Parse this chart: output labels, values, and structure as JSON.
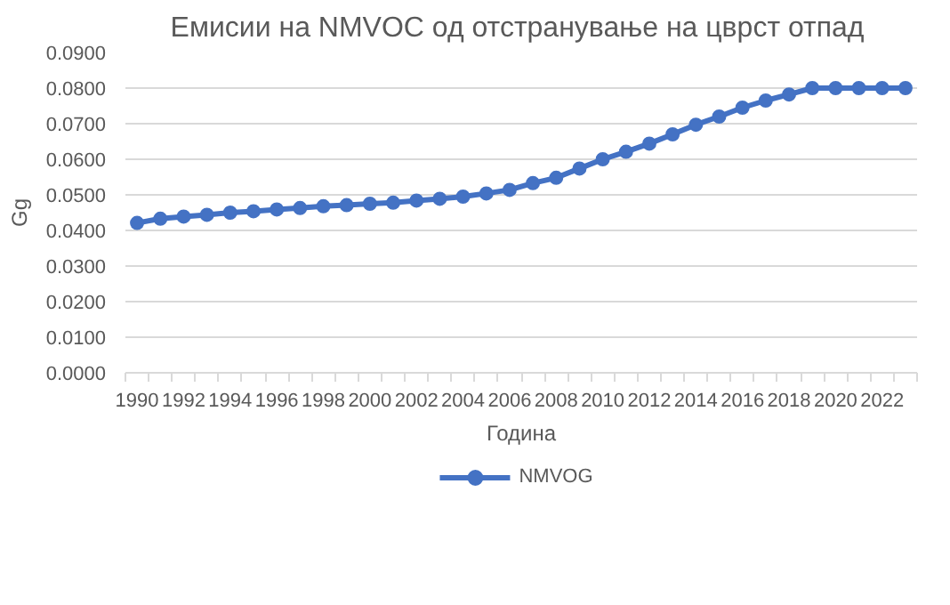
{
  "chart_data": {
    "type": "line",
    "title": "Емисии на  NMVOC од отстранување на цврст отпад",
    "xlabel": "Година",
    "ylabel": "Gg",
    "categories": [
      "1990",
      null,
      "1992",
      null,
      "1994",
      null,
      "1996",
      null,
      "1998",
      null,
      "2000",
      null,
      "2002",
      null,
      "2004",
      null,
      "2006",
      null,
      "2008",
      null,
      "2010",
      null,
      "2012",
      null,
      "2014",
      null,
      "2016",
      null,
      "2018",
      null,
      "2020",
      null,
      "2022",
      null
    ],
    "series": [
      {
        "name": "NMVOG",
        "color": "#4472c4",
        "values": [
          0.0421,
          0.0433,
          0.0439,
          0.0444,
          0.045,
          0.0454,
          0.0459,
          0.0463,
          0.0468,
          0.0471,
          0.0475,
          0.0478,
          0.0484,
          0.0489,
          0.0495,
          0.0504,
          0.0514,
          0.0533,
          0.0548,
          0.0574,
          0.06,
          0.0621,
          0.0644,
          0.067,
          0.0697,
          0.072,
          0.0745,
          0.0765,
          0.0782,
          0.08,
          0.08,
          0.08,
          0.08,
          0.08
        ]
      }
    ],
    "ylim": [
      0,
      0.09
    ],
    "yticks": [
      {
        "value": 0,
        "label": "0.0000"
      },
      {
        "value": 0.01,
        "label": "0.0100"
      },
      {
        "value": 0.02,
        "label": "0.0200"
      },
      {
        "value": 0.03,
        "label": "0.0300"
      },
      {
        "value": 0.04,
        "label": "0.0400"
      },
      {
        "value": 0.05,
        "label": "0.0500"
      },
      {
        "value": 0.06,
        "label": "0.0600"
      },
      {
        "value": 0.07,
        "label": "0.0700"
      },
      {
        "value": 0.08,
        "label": "0.0800"
      },
      {
        "value": 0.09,
        "label": "0.0900"
      }
    ],
    "grid": "y",
    "legend": "bottom",
    "marker": "circle",
    "line_style": "solid"
  }
}
